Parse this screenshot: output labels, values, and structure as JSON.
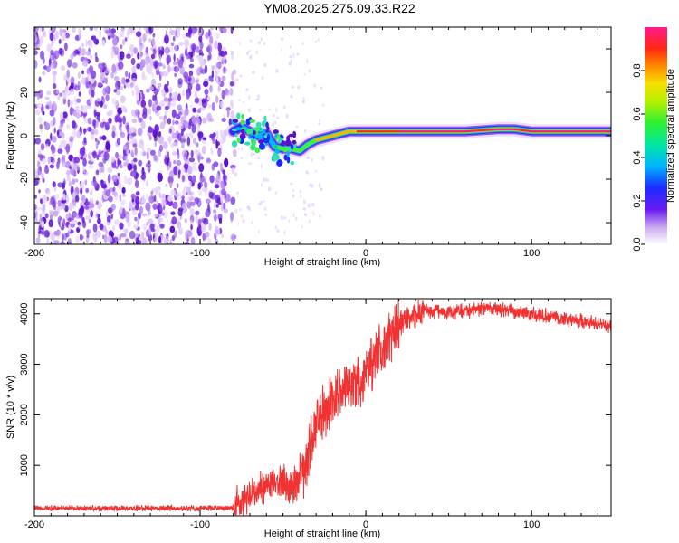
{
  "title": "YM08.2025.275.09.33.R22",
  "chart_data": [
    {
      "type": "heatmap",
      "name": "spectrogram",
      "xlabel": "Height of straight line (km)",
      "ylabel": "Frequency (Hz)",
      "xlim": [
        -200,
        148
      ],
      "ylim": [
        -50,
        50
      ],
      "xticks": [
        -200,
        -100,
        0,
        100
      ],
      "yticks": [
        -40,
        -20,
        0,
        20,
        40
      ],
      "noise_region_x": [
        -200,
        -80
      ],
      "signal_track": [
        [
          -80,
          2
        ],
        [
          -75,
          4
        ],
        [
          -70,
          2
        ],
        [
          -65,
          0
        ],
        [
          -60,
          1
        ],
        [
          -55,
          -5
        ],
        [
          -50,
          -6
        ],
        [
          -45,
          -6
        ],
        [
          -40,
          -7
        ],
        [
          -35,
          -4
        ],
        [
          -30,
          -2
        ],
        [
          -25,
          -1
        ],
        [
          -20,
          0
        ],
        [
          -15,
          1
        ],
        [
          -10,
          2
        ],
        [
          -5,
          2
        ],
        [
          0,
          2
        ],
        [
          10,
          2
        ],
        [
          20,
          2
        ],
        [
          40,
          2
        ],
        [
          60,
          2
        ],
        [
          80,
          3
        ],
        [
          90,
          3
        ],
        [
          100,
          2
        ],
        [
          120,
          2
        ],
        [
          148,
          2
        ]
      ],
      "colorbar": {
        "label": "Normalized spectral amplitude",
        "ticks": [
          "0.0",
          "0.2",
          "0.4",
          "0.6",
          "0.8"
        ],
        "range": [
          0,
          1
        ]
      }
    },
    {
      "type": "line",
      "name": "snr",
      "xlabel": "Height of straight line (km)",
      "ylabel": "SNR (10 * v/v)",
      "xlim": [
        -200,
        148
      ],
      "ylim": [
        0,
        4300
      ],
      "xticks": [
        -200,
        -100,
        0,
        100
      ],
      "yticks": [
        1000,
        2000,
        3000,
        4000
      ],
      "color": "#f03232",
      "series": [
        {
          "name": "SNR",
          "x": [
            -200,
            -180,
            -160,
            -140,
            -120,
            -100,
            -90,
            -80,
            -75,
            -70,
            -65,
            -60,
            -55,
            -50,
            -45,
            -40,
            -35,
            -30,
            -25,
            -20,
            -15,
            -10,
            -5,
            0,
            5,
            10,
            15,
            20,
            25,
            30,
            35,
            40,
            50,
            60,
            70,
            80,
            90,
            100,
            110,
            120,
            130,
            140,
            148
          ],
          "y": [
            150,
            150,
            150,
            150,
            150,
            150,
            150,
            160,
            250,
            400,
            500,
            600,
            700,
            650,
            500,
            700,
            1200,
            1700,
            2100,
            2300,
            2500,
            2500,
            2600,
            2800,
            3000,
            3250,
            3550,
            3800,
            3950,
            4000,
            4050,
            4050,
            4050,
            4050,
            4100,
            4100,
            4050,
            4000,
            3950,
            3900,
            3850,
            3800,
            3750
          ]
        }
      ]
    }
  ]
}
